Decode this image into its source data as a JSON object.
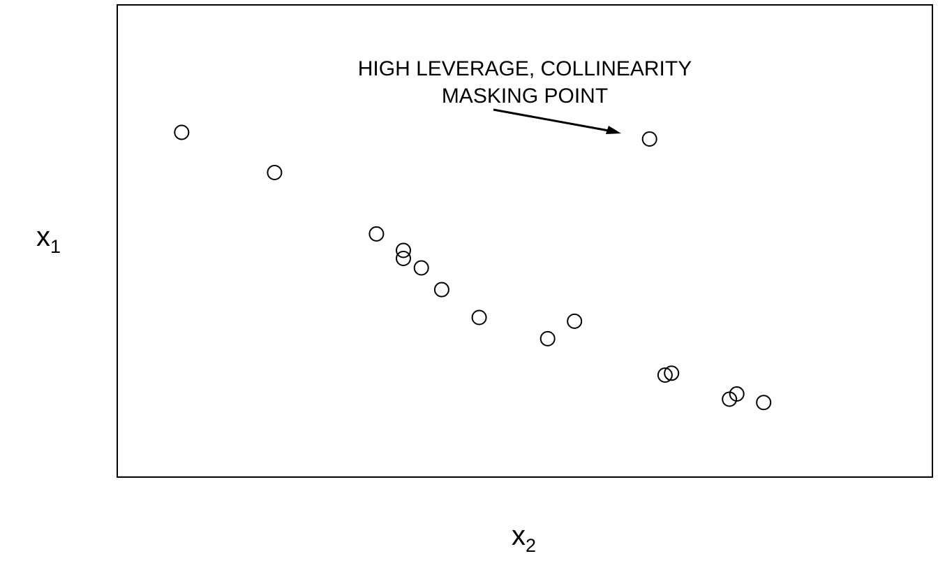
{
  "chart_data": {
    "type": "scatter",
    "title": "",
    "xlabel": {
      "main": "x",
      "sub": "2"
    },
    "ylabel": {
      "main": "x",
      "sub": "1"
    },
    "xlim": [
      0,
      100
    ],
    "ylim": [
      0,
      100
    ],
    "axes_ticks": false,
    "grid": false,
    "marker": "open-circle",
    "colors": {
      "marker": "#000000",
      "frame": "#000000",
      "text": "#000000"
    },
    "points": [
      {
        "x": 7.9,
        "y": 73.0
      },
      {
        "x": 19.3,
        "y": 64.5
      },
      {
        "x": 31.8,
        "y": 51.5
      },
      {
        "x": 35.1,
        "y": 48.0
      },
      {
        "x": 35.1,
        "y": 46.3
      },
      {
        "x": 37.3,
        "y": 44.3
      },
      {
        "x": 39.8,
        "y": 39.7
      },
      {
        "x": 44.4,
        "y": 33.8
      },
      {
        "x": 52.8,
        "y": 29.3
      },
      {
        "x": 56.1,
        "y": 33.0
      },
      {
        "x": 65.3,
        "y": 71.6
      },
      {
        "x": 67.2,
        "y": 21.6
      },
      {
        "x": 68.0,
        "y": 22.0
      },
      {
        "x": 75.1,
        "y": 16.5
      },
      {
        "x": 76.0,
        "y": 17.6
      },
      {
        "x": 79.3,
        "y": 15.8
      }
    ],
    "annotations": [
      {
        "text_lines": [
          "HIGH LEVERAGE, COLLINEARITY",
          "MASKING POINT"
        ],
        "arrow_to_point": {
          "x": 65.3,
          "y": 71.6
        }
      }
    ]
  }
}
